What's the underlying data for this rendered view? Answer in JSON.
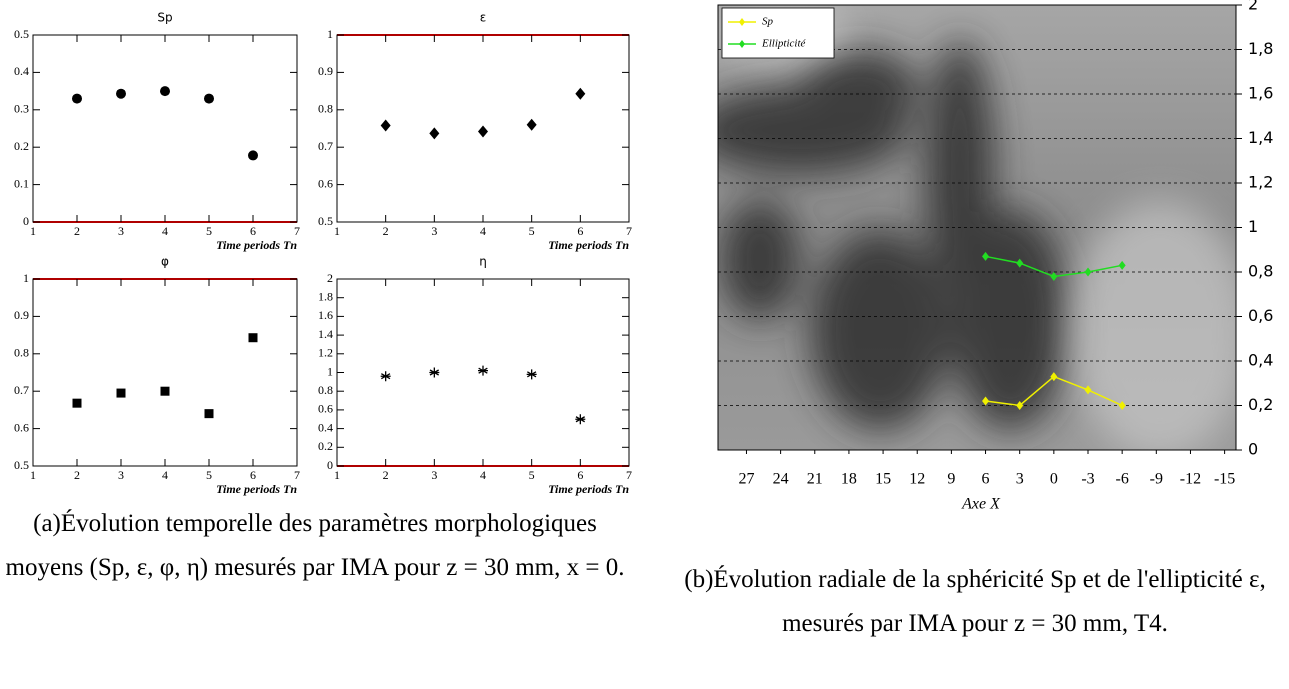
{
  "chart_data": [
    {
      "type": "scatter",
      "title": "Sp",
      "xlabel": "Time periods Tn",
      "x": [
        2,
        3,
        4,
        5,
        6
      ],
      "values": [
        0.33,
        0.343,
        0.35,
        0.33,
        0.178
      ],
      "marker": "circle",
      "color": "#000000",
      "xlim": [
        1,
        7
      ],
      "xticks": [
        1,
        2,
        3,
        4,
        5,
        6,
        7
      ],
      "ylim": [
        0,
        0.5
      ],
      "yticks": [
        0,
        0.1,
        0.2,
        0.3,
        0.4,
        0.5
      ],
      "highlight_edge": "bottom",
      "highlight_color": "#b00000"
    },
    {
      "type": "scatter",
      "title": "ε",
      "xlabel": "Time periods Tn",
      "x": [
        2,
        3,
        4,
        5,
        6
      ],
      "values": [
        0.758,
        0.737,
        0.742,
        0.76,
        0.843
      ],
      "marker": "diamond",
      "color": "#000000",
      "xlim": [
        1,
        7
      ],
      "xticks": [
        1,
        2,
        3,
        4,
        5,
        6,
        7
      ],
      "ylim": [
        0.5,
        1
      ],
      "yticks": [
        0.5,
        0.6,
        0.7,
        0.8,
        0.9,
        1
      ],
      "highlight_edge": "top",
      "highlight_color": "#b00000"
    },
    {
      "type": "scatter",
      "title": "φ",
      "xlabel": "Time periods Tn",
      "x": [
        2,
        3,
        4,
        5,
        6
      ],
      "values": [
        0.668,
        0.695,
        0.7,
        0.64,
        0.843
      ],
      "marker": "square",
      "color": "#000000",
      "xlim": [
        1,
        7
      ],
      "xticks": [
        1,
        2,
        3,
        4,
        5,
        6,
        7
      ],
      "ylim": [
        0.5,
        1
      ],
      "yticks": [
        0.5,
        0.6,
        0.7,
        0.8,
        0.9,
        1
      ],
      "highlight_edge": "top",
      "highlight_color": "#b00000"
    },
    {
      "type": "scatter",
      "title": "η",
      "xlabel": "Time periods Tn",
      "x": [
        2,
        3,
        4,
        5,
        6
      ],
      "values": [
        0.96,
        1.0,
        1.02,
        0.98,
        0.5
      ],
      "marker": "asterisk",
      "color": "#000000",
      "xlim": [
        1,
        7
      ],
      "xticks": [
        1,
        2,
        3,
        4,
        5,
        6,
        7
      ],
      "ylim": [
        0,
        2
      ],
      "yticks": [
        0,
        0.2,
        0.4,
        0.6,
        0.8,
        1,
        1.2,
        1.4,
        1.6,
        1.8,
        2
      ],
      "highlight_edge": "bottom",
      "highlight_color": "#b00000"
    },
    {
      "type": "line",
      "xlabel": "Axe X",
      "x": [
        6,
        3,
        0,
        -3,
        -6
      ],
      "xlim": [
        29.5,
        -16
      ],
      "xticks": [
        27,
        24,
        21,
        18,
        15,
        12,
        9,
        6,
        3,
        0,
        -3,
        -6,
        -9,
        -12,
        -15
      ],
      "ylim": [
        0,
        2
      ],
      "yticks": [
        0,
        {
          "value": 0.2,
          "label": "0,2"
        },
        {
          "value": 0.4,
          "label": "0,4"
        },
        {
          "value": 0.6,
          "label": "0,6"
        },
        {
          "value": 0.8,
          "label": "0,8"
        },
        1,
        {
          "value": 1.2,
          "label": "1,2"
        },
        {
          "value": 1.4,
          "label": "1,4"
        },
        {
          "value": 1.6,
          "label": "1,6"
        },
        {
          "value": 1.8,
          "label": "1,8"
        },
        2
      ],
      "grid": true,
      "legend": "upper left",
      "series": [
        {
          "name": "Sp",
          "color": "#f0f000",
          "values": [
            0.22,
            0.2,
            0.33,
            0.27,
            0.2
          ]
        },
        {
          "name": "Ellipticité",
          "color": "#22dd22",
          "values": [
            0.87,
            0.84,
            0.78,
            0.8,
            0.83
          ]
        }
      ]
    }
  ],
  "captions": {
    "a": "(a)Évolution temporelle des paramètres morphologiques moyens (Sp, ε, φ, η) mesurés par IMA pour z = 30 mm, x = 0.",
    "b": "(b)Évolution radiale de la sphéricité Sp et de l'ellipticité ε, mesurés par IMA pour z = 30 mm, T4."
  }
}
